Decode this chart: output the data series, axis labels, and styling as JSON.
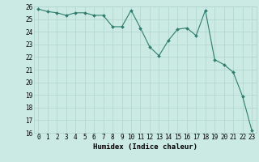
{
  "x": [
    0,
    1,
    2,
    3,
    4,
    5,
    6,
    7,
    8,
    9,
    10,
    11,
    12,
    13,
    14,
    15,
    16,
    17,
    18,
    19,
    20,
    21,
    22,
    23
  ],
  "y": [
    25.8,
    25.6,
    25.5,
    25.3,
    25.5,
    25.5,
    25.3,
    25.3,
    24.4,
    24.4,
    25.7,
    24.3,
    22.8,
    22.1,
    23.3,
    24.2,
    24.3,
    23.7,
    25.7,
    21.8,
    21.4,
    20.8,
    18.9,
    16.2
  ],
  "xlabel": "Humidex (Indice chaleur)",
  "ylim": [
    16,
    26
  ],
  "xlim": [
    -0.5,
    23.5
  ],
  "yticks": [
    16,
    17,
    18,
    19,
    20,
    21,
    22,
    23,
    24,
    25,
    26
  ],
  "xticks": [
    0,
    1,
    2,
    3,
    4,
    5,
    6,
    7,
    8,
    9,
    10,
    11,
    12,
    13,
    14,
    15,
    16,
    17,
    18,
    19,
    20,
    21,
    22,
    23
  ],
  "line_color": "#2e7d6e",
  "marker_color": "#2e7d6e",
  "bg_color": "#cceae4",
  "grid_color": "#b0d4ce",
  "axis_fontsize": 6.5,
  "tick_fontsize": 5.5
}
